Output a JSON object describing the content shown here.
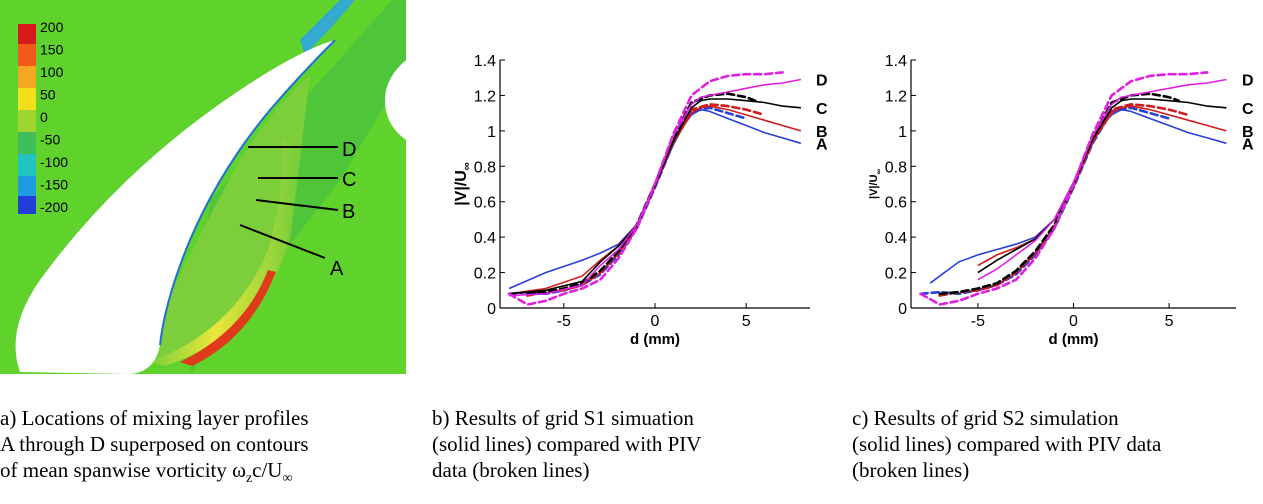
{
  "contour_panel": {
    "colorbar": {
      "levels": [
        "200",
        "150",
        "100",
        "50",
        "0",
        "-50",
        "-100",
        "-150",
        "-200"
      ],
      "colors": [
        "#d7191c",
        "#f05a1a",
        "#f5a623",
        "#f2e11a",
        "#9ed62f",
        "#3fbf5a",
        "#22c4c0",
        "#1f9be0",
        "#1f3fd6"
      ]
    },
    "profile_labels": [
      "A",
      "B",
      "C",
      "D"
    ],
    "colors": {
      "field": "#5fd22b",
      "inner": "#7ccf3b",
      "shear": "#f0e033",
      "airfoil": "#ffffff"
    }
  },
  "charts_common": {
    "profiles": [
      "A",
      "B",
      "C",
      "D"
    ],
    "colors": {
      "A": "#2a3fd6",
      "B": "#d01c1c",
      "C": "#000000",
      "D": "#e020e0"
    },
    "xticks": [
      "-5",
      "0",
      "5"
    ],
    "yticks": [
      "0",
      "0.2",
      "0.4",
      "0.6",
      "0.8",
      "1",
      "1.2",
      "1.4"
    ]
  },
  "chart_data": [
    {
      "type": "line",
      "xlabel": "d (mm)",
      "ylabel_main": "|V|/U",
      "ylabel_sub": "∞",
      "xlim": [
        -8.5,
        8.5
      ],
      "ylim": [
        0,
        1.4
      ],
      "series": [
        {
          "name": "A",
          "style": "solid",
          "x": [
            -8,
            -6,
            -4,
            -3,
            -2,
            -1,
            0,
            1,
            1.5,
            2,
            2.5,
            3,
            4,
            5,
            6,
            7,
            8
          ],
          "y": [
            0.11,
            0.2,
            0.27,
            0.31,
            0.36,
            0.47,
            0.69,
            0.92,
            1.02,
            1.09,
            1.12,
            1.11,
            1.07,
            1.03,
            0.99,
            0.96,
            0.93
          ]
        },
        {
          "name": "A",
          "style": "dashed",
          "x": [
            -8,
            -7,
            -6,
            -5,
            -4,
            -3,
            -2,
            -1,
            0,
            1,
            2,
            3,
            4,
            5
          ],
          "y": [
            0.08,
            0.09,
            0.08,
            0.1,
            0.13,
            0.19,
            0.3,
            0.45,
            0.68,
            0.93,
            1.11,
            1.13,
            1.1,
            1.07
          ]
        },
        {
          "name": "B",
          "style": "solid",
          "x": [
            -8,
            -6,
            -4,
            -3,
            -2,
            -1,
            0,
            1,
            2,
            2.5,
            3,
            4,
            5,
            6,
            7,
            8
          ],
          "y": [
            0.08,
            0.11,
            0.18,
            0.27,
            0.35,
            0.47,
            0.69,
            0.93,
            1.1,
            1.13,
            1.14,
            1.12,
            1.09,
            1.06,
            1.03,
            1.0
          ]
        },
        {
          "name": "B",
          "style": "dashed",
          "x": [
            -7,
            -6,
            -5,
            -4,
            -3,
            -2,
            -1,
            0,
            1,
            2,
            3,
            4,
            5,
            6
          ],
          "y": [
            0.07,
            0.09,
            0.1,
            0.13,
            0.2,
            0.31,
            0.46,
            0.69,
            0.94,
            1.12,
            1.15,
            1.14,
            1.12,
            1.09
          ]
        },
        {
          "name": "C",
          "style": "solid",
          "x": [
            -8,
            -6,
            -4,
            -3,
            -2,
            -1,
            0,
            1,
            2,
            2.5,
            3,
            4,
            5,
            6,
            7,
            8
          ],
          "y": [
            0.08,
            0.1,
            0.15,
            0.26,
            0.35,
            0.47,
            0.69,
            0.94,
            1.13,
            1.17,
            1.18,
            1.18,
            1.17,
            1.16,
            1.14,
            1.13
          ]
        },
        {
          "name": "C",
          "style": "dashed",
          "x": [
            -7,
            -6,
            -5,
            -4,
            -3,
            -2,
            -1,
            0,
            1,
            2,
            3,
            4,
            5,
            5.5
          ],
          "y": [
            0.08,
            0.09,
            0.11,
            0.14,
            0.21,
            0.32,
            0.47,
            0.7,
            0.96,
            1.16,
            1.2,
            1.21,
            1.19,
            1.17
          ]
        },
        {
          "name": "D",
          "style": "solid",
          "x": [
            -8,
            -6,
            -4,
            -3,
            -2,
            -1,
            0,
            1,
            2,
            2.5,
            3,
            4,
            5,
            6,
            7,
            8
          ],
          "y": [
            0.07,
            0.08,
            0.13,
            0.24,
            0.33,
            0.47,
            0.7,
            0.97,
            1.15,
            1.19,
            1.2,
            1.22,
            1.24,
            1.26,
            1.27,
            1.29
          ]
        },
        {
          "name": "D",
          "style": "dashed",
          "x": [
            -8,
            -7,
            -6,
            -5,
            -4,
            -3,
            -2,
            -1,
            0,
            1,
            2,
            3,
            4,
            5,
            6,
            7
          ],
          "y": [
            0.08,
            0.02,
            0.04,
            0.08,
            0.11,
            0.16,
            0.28,
            0.45,
            0.7,
            0.98,
            1.2,
            1.28,
            1.31,
            1.32,
            1.32,
            1.33
          ]
        }
      ]
    },
    {
      "type": "line",
      "xlabel": "d (mm)",
      "ylabel_main": "|V|/U",
      "ylabel_sub": "∞",
      "xlim": [
        -8.5,
        8.5
      ],
      "ylim": [
        0,
        1.4
      ],
      "series": [
        {
          "name": "A",
          "style": "solid",
          "x": [
            -7.5,
            -6,
            -5,
            -4,
            -3,
            -2,
            -1,
            0,
            1,
            1.5,
            2,
            2.5,
            3,
            4,
            5,
            6,
            7,
            8
          ],
          "y": [
            0.14,
            0.26,
            0.3,
            0.33,
            0.36,
            0.4,
            0.5,
            0.7,
            0.93,
            1.03,
            1.09,
            1.12,
            1.11,
            1.07,
            1.03,
            0.99,
            0.96,
            0.93
          ]
        },
        {
          "name": "A",
          "style": "dashed",
          "x": [
            -8,
            -7,
            -6,
            -5,
            -4,
            -3,
            -2,
            -1,
            0,
            1,
            2,
            3,
            4,
            5
          ],
          "y": [
            0.08,
            0.09,
            0.08,
            0.1,
            0.13,
            0.19,
            0.3,
            0.45,
            0.68,
            0.93,
            1.11,
            1.13,
            1.1,
            1.07
          ]
        },
        {
          "name": "B",
          "style": "solid",
          "x": [
            -5,
            -4,
            -3,
            -2,
            -1,
            0,
            1,
            2,
            2.5,
            3,
            4,
            5,
            6,
            7,
            8
          ],
          "y": [
            0.24,
            0.3,
            0.34,
            0.39,
            0.5,
            0.7,
            0.94,
            1.1,
            1.13,
            1.14,
            1.12,
            1.09,
            1.06,
            1.03,
            1.0
          ]
        },
        {
          "name": "B",
          "style": "dashed",
          "x": [
            -7,
            -6,
            -5,
            -4,
            -3,
            -2,
            -1,
            0,
            1,
            2,
            3,
            4,
            5,
            6
          ],
          "y": [
            0.07,
            0.09,
            0.1,
            0.13,
            0.2,
            0.31,
            0.46,
            0.69,
            0.94,
            1.12,
            1.15,
            1.14,
            1.12,
            1.09
          ]
        },
        {
          "name": "C",
          "style": "solid",
          "x": [
            -5,
            -4,
            -3,
            -2,
            -1,
            0,
            1,
            2,
            2.5,
            3,
            4,
            5,
            6,
            7,
            8
          ],
          "y": [
            0.2,
            0.27,
            0.33,
            0.39,
            0.5,
            0.71,
            0.95,
            1.13,
            1.17,
            1.18,
            1.18,
            1.17,
            1.16,
            1.14,
            1.13
          ]
        },
        {
          "name": "C",
          "style": "dashed",
          "x": [
            -7,
            -6,
            -5,
            -4,
            -3,
            -2,
            -1,
            0,
            1,
            2,
            3,
            4,
            5,
            5.5
          ],
          "y": [
            0.08,
            0.09,
            0.11,
            0.14,
            0.21,
            0.32,
            0.47,
            0.7,
            0.96,
            1.16,
            1.2,
            1.21,
            1.19,
            1.17
          ]
        },
        {
          "name": "D",
          "style": "solid",
          "x": [
            -5,
            -4,
            -3,
            -2,
            -1,
            0,
            1,
            2,
            2.5,
            3,
            4,
            5,
            6,
            7,
            8
          ],
          "y": [
            0.16,
            0.22,
            0.3,
            0.38,
            0.5,
            0.71,
            0.97,
            1.15,
            1.19,
            1.2,
            1.22,
            1.24,
            1.26,
            1.27,
            1.29
          ]
        },
        {
          "name": "D",
          "style": "dashed",
          "x": [
            -8,
            -7,
            -6,
            -5,
            -4,
            -3,
            -2,
            -1,
            0,
            1,
            2,
            3,
            4,
            5,
            6,
            7
          ],
          "y": [
            0.08,
            0.02,
            0.04,
            0.08,
            0.11,
            0.16,
            0.28,
            0.45,
            0.7,
            0.98,
            1.2,
            1.28,
            1.31,
            1.32,
            1.32,
            1.33
          ]
        }
      ]
    }
  ],
  "captions": {
    "a": [
      "a) Locations of mixing layer profiles",
      "A through D superposed on contours",
      "of mean spanwise vorticity ω",
      "z",
      "c/U",
      "∞"
    ],
    "b": [
      "b) Results of grid S1 simuation",
      "(solid lines) compared with PIV",
      "data (broken lines)"
    ],
    "c": [
      "c) Results of grid S2 simulation",
      "(solid lines) compared with PIV data",
      "(broken lines)"
    ]
  }
}
